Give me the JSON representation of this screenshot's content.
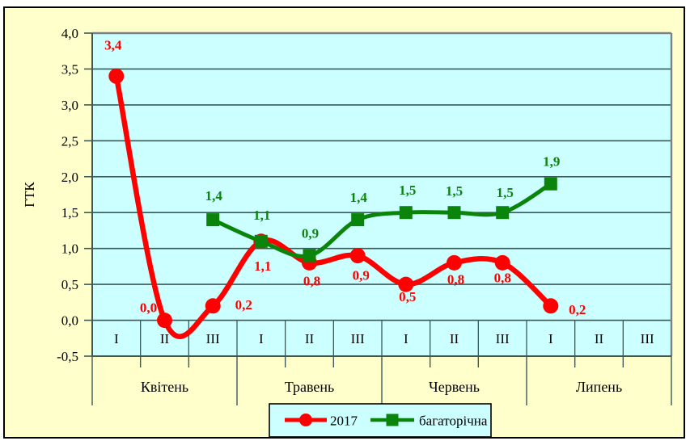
{
  "chart_data": {
    "type": "line",
    "title": "",
    "ylabel": "ГТК",
    "colors": {
      "canvas_background": "#FFFFCC",
      "plot_background": "#CCFFFF",
      "grid": "#3A5A5A",
      "plot_border": "#808080",
      "outer_border": "#000000",
      "text": "#000000",
      "series_2017": "#FF0000",
      "series_longterm": "#0B840B"
    },
    "y_axis": {
      "min": -0.5,
      "max": 4.0,
      "step": 0.5,
      "tick_labels": [
        "4,0",
        "3,5",
        "3,0",
        "2,5",
        "2,0",
        "1,5",
        "1,0",
        "0,5",
        "0,0",
        "-0,5"
      ],
      "tick_values": [
        4.0,
        3.5,
        3.0,
        2.5,
        2.0,
        1.5,
        1.0,
        0.5,
        0.0,
        -0.5
      ],
      "grid": true
    },
    "x_axis": {
      "decade_labels": [
        "I",
        "II",
        "III",
        "I",
        "II",
        "III",
        "I",
        "II",
        "III",
        "I",
        "II",
        "III"
      ],
      "month_labels": [
        "Квітень",
        "Травень",
        "Червень",
        "Липень"
      ],
      "columns_per_month": 3
    },
    "series": [
      {
        "name": "2017",
        "marker": "circle",
        "color": "#FF0000",
        "start_col": 0,
        "values": [
          3.4,
          0.0,
          0.2,
          1.1,
          0.8,
          0.9,
          0.5,
          0.8,
          0.8,
          0.2
        ],
        "labels": [
          "3,4",
          "0,0",
          "0,2",
          "1,1",
          "0,8",
          "0,9",
          "0,5",
          "0,8",
          "0,8",
          "0,2"
        ],
        "label_offsets": [
          [
            -4,
            -33
          ],
          [
            -20,
            -10
          ],
          [
            38,
            4
          ],
          [
            2,
            36
          ],
          [
            3,
            28
          ],
          [
            4,
            30
          ],
          [
            2,
            21
          ],
          [
            2,
            26
          ],
          [
            0,
            24
          ],
          [
            33,
            10
          ]
        ]
      },
      {
        "name": "багаторічна",
        "marker": "square",
        "color": "#0B840B",
        "start_col": 2,
        "values": [
          1.4,
          1.1,
          0.9,
          1.4,
          1.5,
          1.5,
          1.5,
          1.9
        ],
        "labels": [
          "1,4",
          "1,1",
          "0,9",
          "1,4",
          "1,5",
          "1,5",
          "1,5",
          "1,9"
        ],
        "label_offsets": [
          [
            1,
            -24
          ],
          [
            1,
            -27
          ],
          [
            1,
            -22
          ],
          [
            1,
            -22
          ],
          [
            2,
            -22
          ],
          [
            0,
            -21
          ],
          [
            3,
            -19
          ],
          [
            1,
            -22
          ]
        ]
      }
    ],
    "legend": {
      "position": "bottom",
      "entries": [
        {
          "label": "2017",
          "marker": "circle",
          "color": "#FF0000"
        },
        {
          "label": "багаторічна",
          "marker": "square",
          "color": "#0B840B"
        }
      ]
    }
  }
}
